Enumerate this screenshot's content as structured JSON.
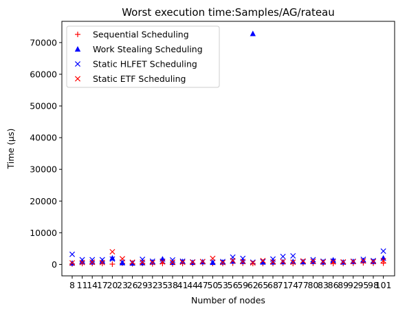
{
  "chart_data": {
    "type": "scatter",
    "title": "Worst execution time:Samples/AG/rateau",
    "xlabel": "Number of nodes",
    "ylabel": "Time (µs)",
    "categories": [
      "8",
      "11",
      "14",
      "17",
      "20",
      "23",
      "26",
      "29",
      "32",
      "35",
      "38",
      "41",
      "44",
      "47",
      "50",
      "53",
      "56",
      "59",
      "62",
      "65",
      "68",
      "71",
      "74",
      "77",
      "80",
      "83",
      "86",
      "89",
      "92",
      "95",
      "98",
      "101"
    ],
    "yticks": [
      0,
      10000,
      20000,
      30000,
      40000,
      50000,
      60000,
      70000
    ],
    "ylim": [
      -3600,
      76700
    ],
    "grid": false,
    "legend_position": "top-left",
    "series": [
      {
        "name": "Sequential Scheduling",
        "marker": "plus",
        "color": "#ff0000",
        "values": [
          150,
          300,
          300,
          300,
          100,
          400,
          200,
          300,
          200,
          300,
          200,
          300,
          300,
          400,
          300,
          300,
          400,
          400,
          300,
          300,
          300,
          400,
          300,
          400,
          400,
          300,
          300,
          300,
          400,
          500,
          400,
          400
        ]
      },
      {
        "name": "Work Stealing Scheduling",
        "marker": "triangle",
        "color": "#0000ff",
        "values": [
          400,
          800,
          700,
          900,
          2000,
          500,
          400,
          500,
          700,
          1700,
          600,
          900,
          600,
          800,
          600,
          700,
          1000,
          900,
          72800,
          700,
          700,
          800,
          900,
          800,
          900,
          700,
          1400,
          700,
          900,
          1200,
          900,
          2000
        ]
      },
      {
        "name": "Static HLFET Scheduling",
        "marker": "x",
        "color": "#0000ff",
        "values": [
          3200,
          1500,
          1500,
          1500,
          1700,
          700,
          500,
          1600,
          1000,
          1000,
          1400,
          1000,
          800,
          900,
          700,
          900,
          2300,
          1900,
          700,
          900,
          1700,
          2500,
          2700,
          900,
          1500,
          1000,
          1100,
          700,
          1000,
          1600,
          1200,
          4200
        ]
      },
      {
        "name": "Static ETF Scheduling",
        "marker": "x",
        "color": "#ff0000",
        "values": [
          500,
          600,
          700,
          600,
          4000,
          1800,
          700,
          700,
          600,
          800,
          700,
          700,
          700,
          900,
          1900,
          600,
          1200,
          900,
          500,
          1200,
          800,
          900,
          700,
          1100,
          1000,
          800,
          800,
          800,
          900,
          1100,
          900,
          1200
        ]
      }
    ]
  }
}
